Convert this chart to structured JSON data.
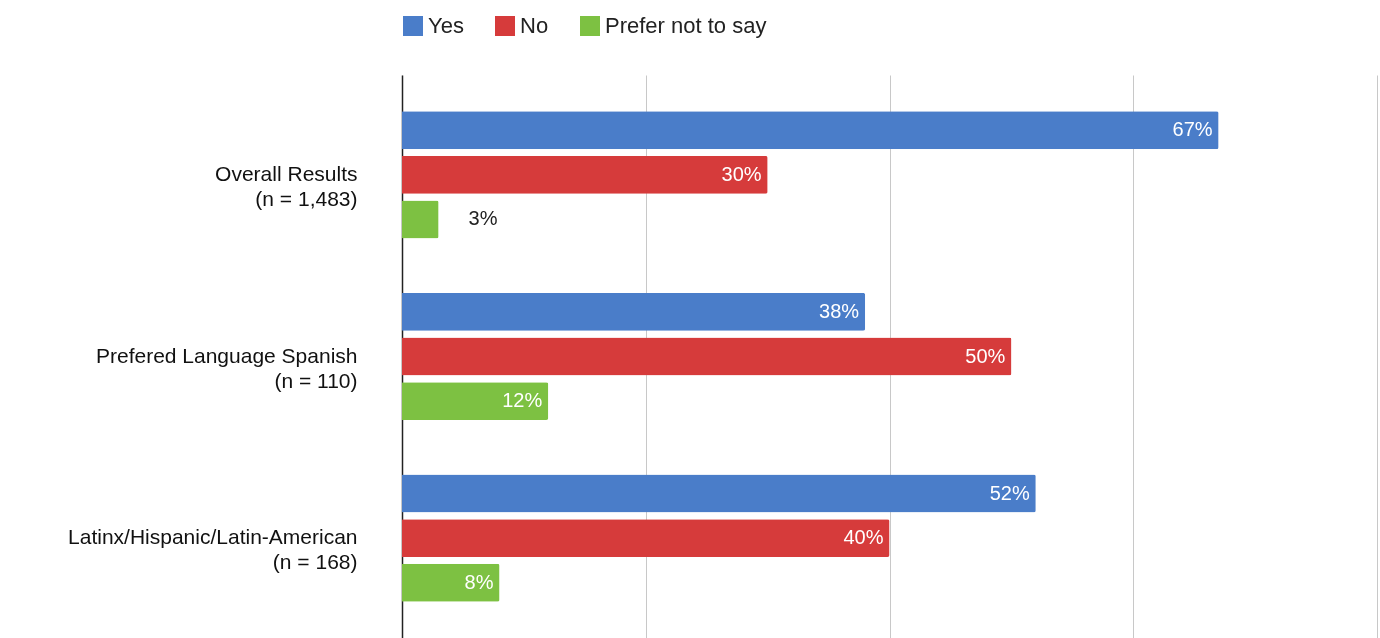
{
  "chart_data": {
    "type": "bar",
    "orientation": "horizontal",
    "categories": [
      "Overall Results\n(n = 1,483)",
      "Prefered Language Spanish\n(n = 110)",
      "Latinx/Hispanic/Latin-American\n(n = 168)"
    ],
    "series": [
      {
        "name": "Yes",
        "color": "#4a7dc9",
        "values": [
          67,
          38,
          52
        ],
        "value_labels": [
          "67%",
          "38%",
          "52%"
        ]
      },
      {
        "name": "No",
        "color": "#d63b3b",
        "values": [
          30,
          50,
          40
        ],
        "value_labels": [
          "30%",
          "50%",
          "40%"
        ]
      },
      {
        "name": "Prefer not to say",
        "color": "#7dc142",
        "values": [
          3,
          12,
          8
        ],
        "value_labels": [
          "3%",
          "12%",
          "8%"
        ]
      }
    ],
    "xlim": [
      0,
      80
    ],
    "xticks": [
      {
        "value": 0,
        "label": null
      },
      {
        "value": 20,
        "label": null
      },
      {
        "value": 40,
        "label": null
      },
      {
        "value": 60,
        "label": null
      },
      {
        "value": 80,
        "label": null
      }
    ],
    "grid": "x",
    "legend": "top",
    "tick_labels": "y"
  }
}
